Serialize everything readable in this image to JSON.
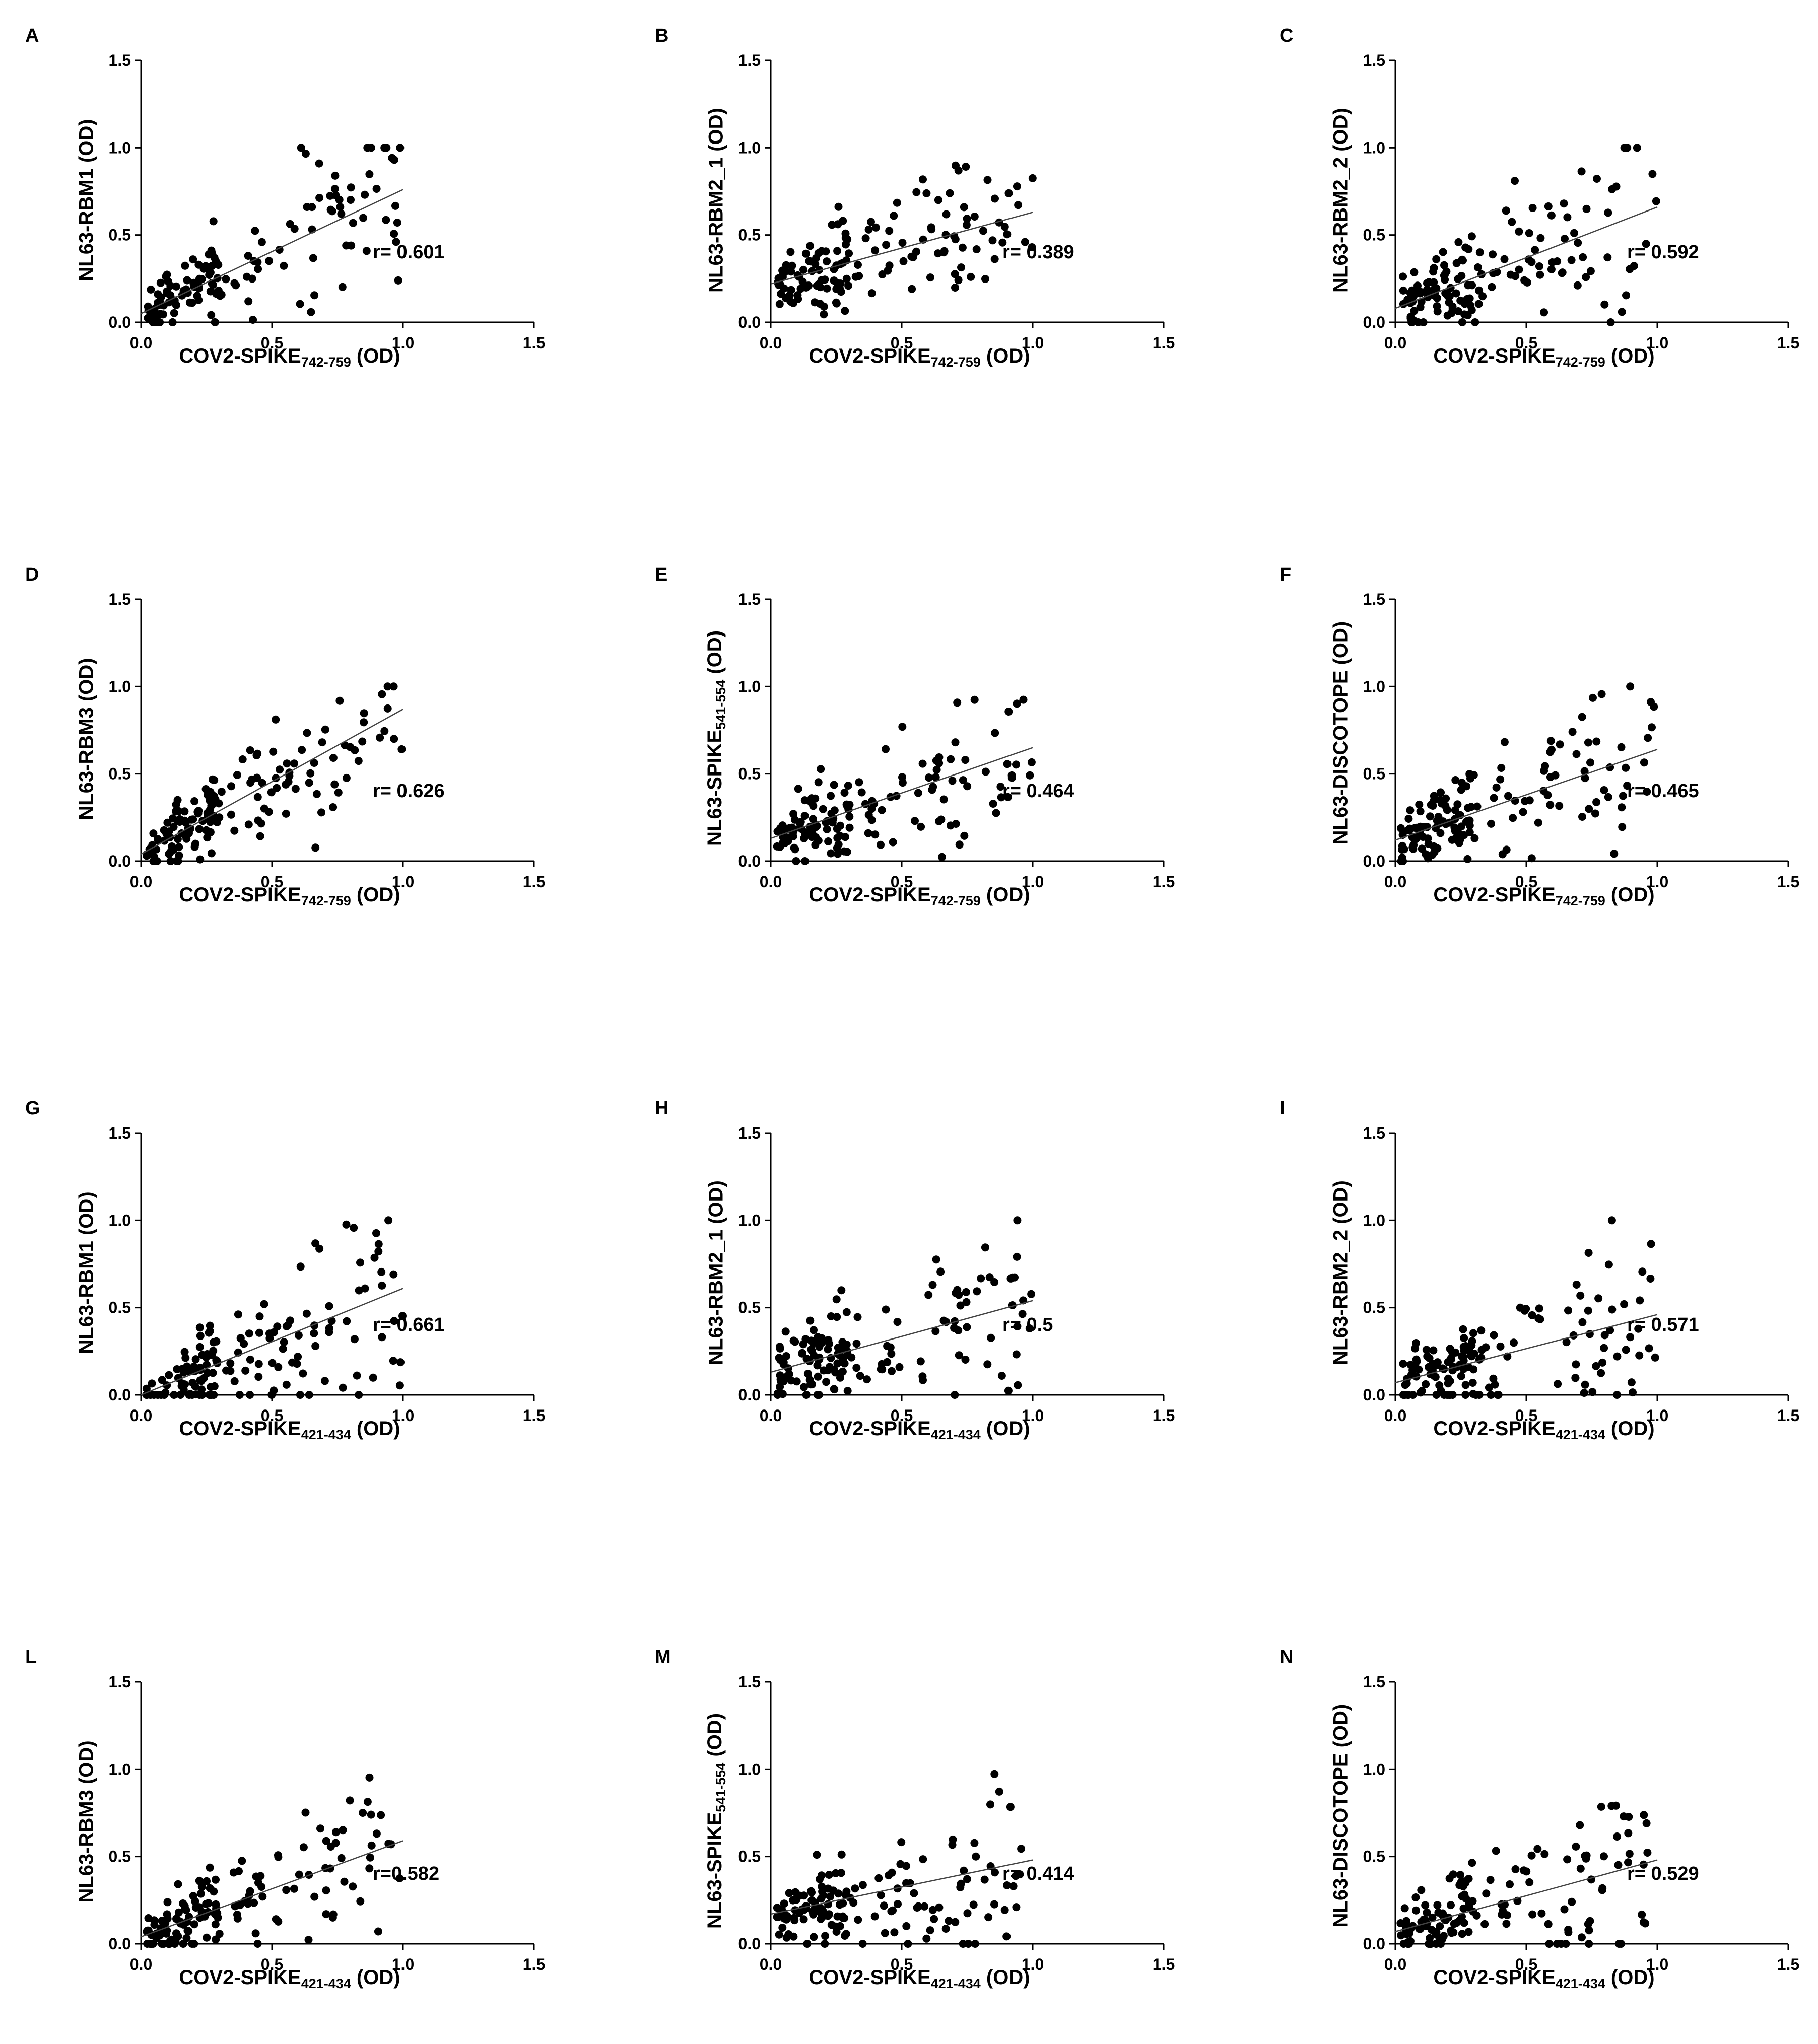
{
  "figure": {
    "x_ticks": [
      "0.0",
      "0.5",
      "1.0",
      "1.5"
    ],
    "y_ticks": [
      "0.0",
      "0.5",
      "1.0",
      "1.5"
    ],
    "od_suffix": " (OD)"
  },
  "chart_data": [
    {
      "id": "A",
      "type": "scatter",
      "ylabel": "NL63-RBM1 (OD)",
      "xlabel": "COV2-SPIKE",
      "xlabel_sub": "742-759",
      "r_text": "r= 0.601",
      "r": 0.601,
      "fit": [
        [
          0,
          0.05
        ],
        [
          1.0,
          0.76
        ]
      ],
      "xlim": [
        0,
        1.5
      ],
      "ylim": [
        0,
        1.5
      ],
      "n_points": 150
    },
    {
      "id": "B",
      "type": "scatter",
      "ylabel": "NL63-RBM2_1 (OD)",
      "xlabel": "COV2-SPIKE",
      "xlabel_sub": "742-759",
      "r_text": "r= 0.389",
      "r": 0.389,
      "fit": [
        [
          0,
          0.22
        ],
        [
          1.0,
          0.63
        ]
      ],
      "xlim": [
        0,
        1.5
      ],
      "ylim": [
        0,
        1.5
      ],
      "n_points": 150
    },
    {
      "id": "C",
      "type": "scatter",
      "ylabel": "NL63-RBM2_2 (OD)",
      "xlabel": "COV2-SPIKE",
      "xlabel_sub": "742-759",
      "r_text": "r= 0.592",
      "r": 0.592,
      "fit": [
        [
          0,
          0.08
        ],
        [
          1.0,
          0.66
        ]
      ],
      "xlim": [
        0,
        1.5
      ],
      "ylim": [
        0,
        1.5
      ],
      "n_points": 150
    },
    {
      "id": "D",
      "type": "scatter",
      "ylabel": "NL63-RBM3 (OD)",
      "xlabel": "COV2-SPIKE",
      "xlabel_sub": "742-759",
      "r_text": "r= 0.626",
      "r": 0.626,
      "fit": [
        [
          0,
          0.04
        ],
        [
          1.0,
          0.87
        ]
      ],
      "xlim": [
        0,
        1.5
      ],
      "ylim": [
        0,
        1.5
      ],
      "n_points": 150
    },
    {
      "id": "E",
      "type": "scatter",
      "ylabel": "NL63-SPIKE",
      "ylabel_sub": "541-554",
      "ylabel_suffix": " (OD)",
      "xlabel": "COV2-SPIKE",
      "xlabel_sub": "742-759",
      "r_text": "r= 0.464",
      "r": 0.464,
      "fit": [
        [
          0,
          0.13
        ],
        [
          1.0,
          0.65
        ]
      ],
      "xlim": [
        0,
        1.5
      ],
      "ylim": [
        0,
        1.5
      ],
      "n_points": 150
    },
    {
      "id": "F",
      "type": "scatter",
      "ylabel": "NL63-DISCOTOPE (OD)",
      "xlabel": "COV2-SPIKE",
      "xlabel_sub": "742-759",
      "r_text": "r= 0.465",
      "r": 0.465,
      "fit": [
        [
          0,
          0.12
        ],
        [
          1.0,
          0.64
        ]
      ],
      "xlim": [
        0,
        1.5
      ],
      "ylim": [
        0,
        1.5
      ],
      "n_points": 150
    },
    {
      "id": "G",
      "type": "scatter",
      "ylabel": "NL63-RBM1 (OD)",
      "xlabel": "COV2-SPIKE",
      "xlabel_sub": "421-434",
      "r_text": "r= 0.661",
      "r": 0.661,
      "fit": [
        [
          0,
          0.0
        ],
        [
          1.0,
          0.61
        ]
      ],
      "xlim": [
        0,
        1.5
      ],
      "ylim": [
        0,
        1.5
      ],
      "n_points": 150
    },
    {
      "id": "H",
      "type": "scatter",
      "ylabel": "NL63-RBM2_1 (OD)",
      "xlabel": "COV2-SPIKE",
      "xlabel_sub": "421-434",
      "r_text": "r= 0.5",
      "r": 0.5,
      "fit": [
        [
          0,
          0.13
        ],
        [
          1.0,
          0.54
        ]
      ],
      "xlim": [
        0,
        1.5
      ],
      "ylim": [
        0,
        1.5
      ],
      "n_points": 150
    },
    {
      "id": "I",
      "type": "scatter",
      "ylabel": "NL63-RBM2_2 (OD)",
      "xlabel": "COV2-SPIKE",
      "xlabel_sub": "421-434",
      "r_text": "r= 0.571",
      "r": 0.571,
      "fit": [
        [
          0,
          0.07
        ],
        [
          1.0,
          0.46
        ]
      ],
      "xlim": [
        0,
        1.5
      ],
      "ylim": [
        0,
        1.5
      ],
      "n_points": 150
    },
    {
      "id": "L",
      "type": "scatter",
      "ylabel": "NL63-RBM3 (OD)",
      "xlabel": "COV2-SPIKE",
      "xlabel_sub": "421-434",
      "r_text": "r=0.582",
      "r": 0.582,
      "fit": [
        [
          0,
          0.04
        ],
        [
          1.0,
          0.59
        ]
      ],
      "xlim": [
        0,
        1.5
      ],
      "ylim": [
        0,
        1.5
      ],
      "n_points": 150
    },
    {
      "id": "M",
      "type": "scatter",
      "ylabel": "NL63-SPIKE",
      "ylabel_sub": "541-554",
      "ylabel_suffix": " (OD)",
      "xlabel": "COV2-SPIKE",
      "xlabel_sub": "421-434",
      "r_text": "r= 0.414",
      "r": 0.414,
      "fit": [
        [
          0,
          0.17
        ],
        [
          1.0,
          0.48
        ]
      ],
      "xlim": [
        0,
        1.5
      ],
      "ylim": [
        0,
        1.5
      ],
      "n_points": 150
    },
    {
      "id": "N",
      "type": "scatter",
      "ylabel": "NL63-DISCOTOPE (OD)",
      "xlabel": "COV2-SPIKE",
      "xlabel_sub": "421-434",
      "r_text": "r= 0.529",
      "r": 0.529,
      "fit": [
        [
          0,
          0.07
        ],
        [
          1.0,
          0.48
        ]
      ],
      "xlim": [
        0,
        1.5
      ],
      "ylim": [
        0,
        1.5
      ],
      "n_points": 150
    }
  ]
}
